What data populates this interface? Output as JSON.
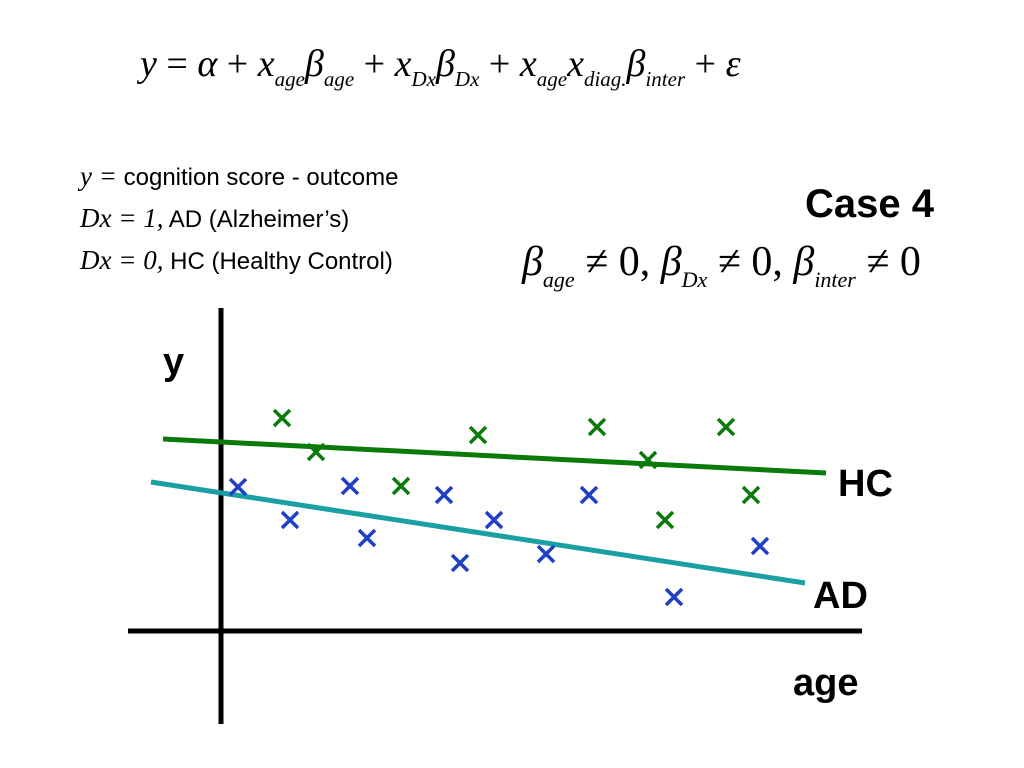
{
  "equation": {
    "lhs": "y",
    "equals": "=",
    "alpha": "α",
    "plus": "+",
    "x": "x",
    "beta": "β",
    "sub_age": "age",
    "sub_dx": "Dx",
    "sub_diag": "diag.",
    "sub_inter": "inter",
    "epsilon": "ε"
  },
  "definitions": [
    {
      "math": "y =",
      "text": " cognition score - outcome"
    },
    {
      "math": "Dx = 1,",
      "text": " AD (Alzheimer’s)"
    },
    {
      "math": "Dx = 0,",
      "text": " HC (Healthy Control)"
    }
  ],
  "case_label": "Case 4",
  "conditions": {
    "beta": "β",
    "neq_zero_comma": " ≠ 0,",
    "neq_zero": " ≠ 0",
    "sub_age": "age",
    "sub_dx": "Dx",
    "sub_inter": "inter"
  },
  "plot": {
    "y_label": "y",
    "x_label": "age",
    "colors": {
      "hc": "#0a7a0a",
      "ad": "#1a9fa3",
      "ad_marker": "#1f3fc4",
      "axis": "#000000"
    },
    "series": [
      {
        "name": "HC",
        "line": [
          [
            163,
            439
          ],
          [
            826,
            473
          ]
        ],
        "points": [
          [
            282,
            418
          ],
          [
            316,
            452
          ],
          [
            401,
            486
          ],
          [
            478,
            435
          ],
          [
            597,
            427
          ],
          [
            648,
            460
          ],
          [
            665,
            520
          ],
          [
            726,
            427
          ],
          [
            751,
            495
          ]
        ]
      },
      {
        "name": "AD",
        "line": [
          [
            151,
            482
          ],
          [
            805,
            583
          ]
        ],
        "points": [
          [
            238,
            487
          ],
          [
            290,
            520
          ],
          [
            350,
            486
          ],
          [
            367,
            538
          ],
          [
            444,
            495
          ],
          [
            460,
            563
          ],
          [
            494,
            520
          ],
          [
            546,
            554
          ],
          [
            589,
            495
          ],
          [
            674,
            597
          ],
          [
            760,
            546
          ]
        ]
      }
    ]
  }
}
